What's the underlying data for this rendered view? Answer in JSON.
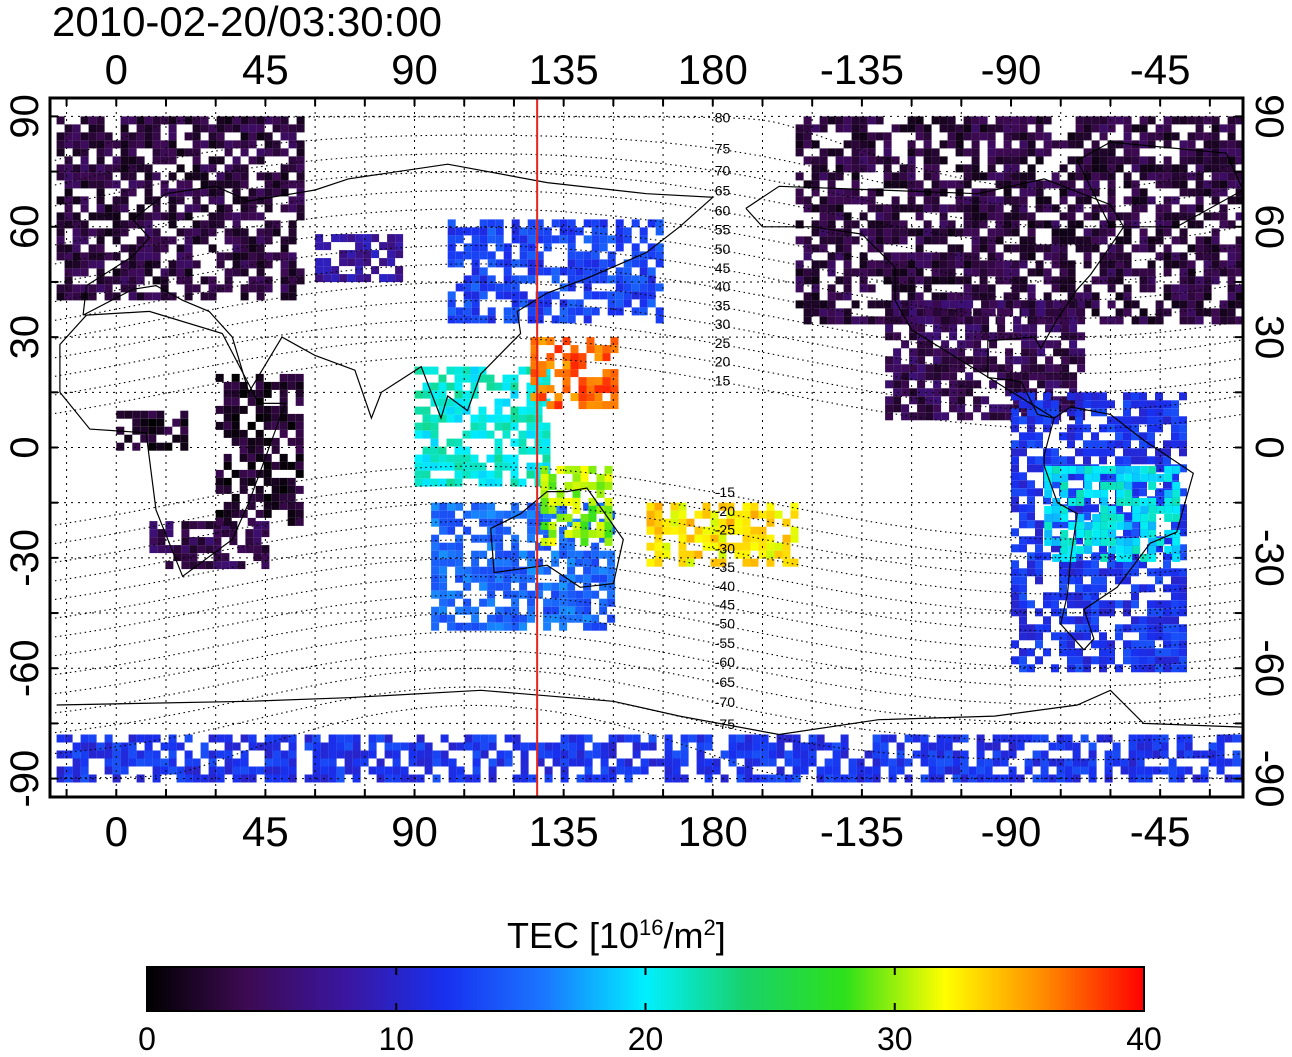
{
  "timestamp": "2010-02-20/03:30:00",
  "map": {
    "projection": "equirectangular",
    "lon_range": [
      -20,
      340
    ],
    "lat_range": [
      -95,
      95
    ],
    "lon_ticks": [
      {
        "value": 0,
        "label": "0"
      },
      {
        "value": 45,
        "label": "45"
      },
      {
        "value": 90,
        "label": "90"
      },
      {
        "value": 135,
        "label": "135"
      },
      {
        "value": 180,
        "label": "180"
      },
      {
        "value": 225,
        "label": "-135"
      },
      {
        "value": 270,
        "label": "-90"
      },
      {
        "value": 315,
        "label": "-45"
      }
    ],
    "lat_ticks": [
      {
        "value": 90,
        "label": "90"
      },
      {
        "value": 60,
        "label": "60"
      },
      {
        "value": 30,
        "label": "30"
      },
      {
        "value": 0,
        "label": "0"
      },
      {
        "value": -30,
        "label": "-30"
      },
      {
        "value": -60,
        "label": "-60"
      },
      {
        "value": -90,
        "label": "-90"
      }
    ],
    "meridian_marker_lon": 127,
    "meridian_marker_color": "#e8231b",
    "magnetic_latitude_labels": [
      "80",
      "75",
      "70",
      "65",
      "60",
      "55",
      "50",
      "45",
      "40",
      "35",
      "30",
      "25",
      "20",
      "15",
      "-15",
      "-20",
      "-25",
      "-30",
      "-35",
      "-40",
      "-45",
      "-50",
      "-55",
      "-60",
      "-65",
      "-70",
      "-75"
    ],
    "grid": "dotted"
  },
  "colorbar": {
    "title_prefix": "TEC  [10",
    "title_exp1": "16",
    "title_mid": "/m",
    "title_exp2": "2",
    "title_suffix": "]",
    "range": [
      0,
      40
    ],
    "ticks": [
      {
        "value": 0,
        "label": "0"
      },
      {
        "value": 10,
        "label": "10"
      },
      {
        "value": 20,
        "label": "20"
      },
      {
        "value": 30,
        "label": "30"
      },
      {
        "value": 40,
        "label": "40"
      }
    ],
    "colors": [
      "#000000",
      "#3d0a52",
      "#3a16a0",
      "#1830f0",
      "#1a78ff",
      "#00f0ff",
      "#18d26a",
      "#2ee01a",
      "#ffff00",
      "#ff8a00",
      "#ff0000"
    ]
  },
  "tec_regions": [
    {
      "lon": [
        -18,
        55
      ],
      "lat": [
        40,
        90
      ],
      "tec": 3
    },
    {
      "lon": [
        205,
        338
      ],
      "lat": [
        35,
        90
      ],
      "tec": 3
    },
    {
      "lon": [
        232,
        290
      ],
      "lat": [
        8,
        40
      ],
      "tec": 4
    },
    {
      "lon": [
        270,
        322
      ],
      "lat": [
        -60,
        15
      ],
      "tec": 12
    },
    {
      "lon": [
        -18,
        340
      ],
      "lat": [
        -90,
        -78
      ],
      "tec": 12
    },
    {
      "lon": [
        95,
        150
      ],
      "lat": [
        -48,
        -15
      ],
      "tec": 15
    },
    {
      "lon": [
        90,
        130
      ],
      "lat": [
        -10,
        22
      ],
      "tec": 21
    },
    {
      "lon": [
        125,
        150
      ],
      "lat": [
        12,
        30
      ],
      "tec": 37
    },
    {
      "lon": [
        128,
        148
      ],
      "lat": [
        -25,
        -5
      ],
      "tec": 30
    },
    {
      "lon": [
        160,
        205
      ],
      "lat": [
        -32,
        -15
      ],
      "tec": 33
    },
    {
      "lon": [
        10,
        45
      ],
      "lat": [
        -32,
        -20
      ],
      "tec": 4
    },
    {
      "lon": [
        30,
        55
      ],
      "lat": [
        -20,
        20
      ],
      "tec": 2
    },
    {
      "lon": [
        0,
        20
      ],
      "lat": [
        0,
        10
      ],
      "tec": 2
    },
    {
      "lon": [
        100,
        165
      ],
      "lat": [
        35,
        62
      ],
      "tec": 13
    },
    {
      "lon": [
        280,
        320
      ],
      "lat": [
        -30,
        -5
      ],
      "tec": 20
    },
    {
      "lon": [
        60,
        85
      ],
      "lat": [
        45,
        58
      ],
      "tec": 8
    }
  ]
}
